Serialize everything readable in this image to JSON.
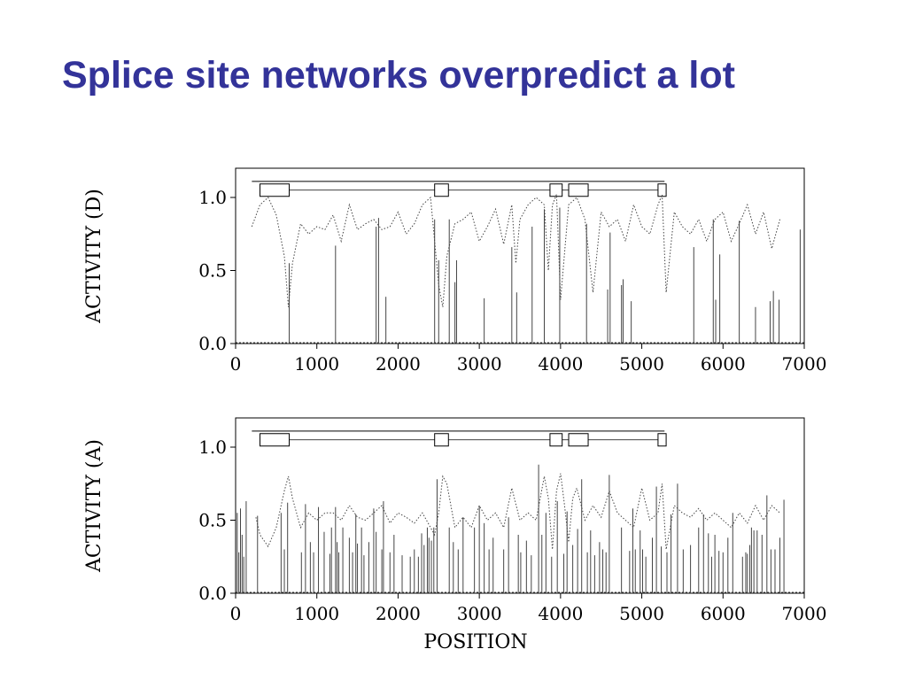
{
  "slide": {
    "title": "Splice site networks overpredict a lot"
  },
  "colors": {
    "title": "#333399",
    "ink": "#000000",
    "trace": "#444444"
  },
  "chart_data": [
    {
      "type": "line",
      "title": "",
      "xlabel": "",
      "ylabel": "ACTIVITY (D)",
      "xlim": [
        0,
        7000
      ],
      "ylim": [
        0,
        1.2
      ],
      "xticks": [
        "0",
        "1000",
        "2000",
        "3000",
        "4000",
        "5000",
        "6000",
        "7000"
      ],
      "xtick_values": [
        0,
        1000,
        2000,
        3000,
        4000,
        5000,
        6000,
        7000
      ],
      "yticks": [
        "0.0",
        "0.5",
        "1.0"
      ],
      "ytick_values": [
        0,
        0.5,
        1.0
      ],
      "grid": false,
      "gene_structure": {
        "start": 200,
        "end": 5280,
        "y_top": 1.11,
        "y_line": 1.05,
        "exons": [
          [
            300,
            660
          ],
          [
            2450,
            2620
          ],
          [
            3870,
            4020
          ],
          [
            4100,
            4340
          ],
          [
            5200,
            5300
          ]
        ]
      },
      "spikes": [
        {
          "x": 660,
          "y": 0.55
        },
        {
          "x": 1230,
          "y": 0.67
        },
        {
          "x": 1730,
          "y": 0.8
        },
        {
          "x": 1760,
          "y": 0.86
        },
        {
          "x": 1850,
          "y": 0.32
        },
        {
          "x": 2450,
          "y": 0.85
        },
        {
          "x": 2500,
          "y": 0.57
        },
        {
          "x": 2630,
          "y": 0.85
        },
        {
          "x": 2700,
          "y": 0.42
        },
        {
          "x": 2720,
          "y": 0.57
        },
        {
          "x": 3060,
          "y": 0.31
        },
        {
          "x": 3400,
          "y": 0.66
        },
        {
          "x": 3460,
          "y": 0.35
        },
        {
          "x": 3650,
          "y": 0.8
        },
        {
          "x": 3800,
          "y": 0.92
        },
        {
          "x": 3990,
          "y": 0.93
        },
        {
          "x": 4320,
          "y": 0.82
        },
        {
          "x": 4580,
          "y": 0.37
        },
        {
          "x": 4610,
          "y": 0.76
        },
        {
          "x": 4750,
          "y": 0.4
        },
        {
          "x": 4770,
          "y": 0.44
        },
        {
          "x": 4870,
          "y": 0.29
        },
        {
          "x": 5640,
          "y": 0.66
        },
        {
          "x": 5880,
          "y": 0.85
        },
        {
          "x": 5910,
          "y": 0.3
        },
        {
          "x": 5960,
          "y": 0.61
        },
        {
          "x": 6200,
          "y": 0.84
        },
        {
          "x": 6400,
          "y": 0.25
        },
        {
          "x": 6580,
          "y": 0.29
        },
        {
          "x": 6620,
          "y": 0.36
        },
        {
          "x": 6690,
          "y": 0.3
        },
        {
          "x": 6950,
          "y": 0.78
        }
      ],
      "trace_x": [
        200,
        300,
        400,
        500,
        600,
        650,
        700,
        800,
        900,
        1000,
        1100,
        1200,
        1300,
        1400,
        1500,
        1600,
        1700,
        1800,
        1900,
        2000,
        2100,
        2200,
        2300,
        2400,
        2450,
        2500,
        2550,
        2600,
        2700,
        2800,
        2900,
        3000,
        3100,
        3200,
        3300,
        3400,
        3450,
        3500,
        3600,
        3700,
        3800,
        3850,
        3900,
        3950,
        4000,
        4100,
        4200,
        4300,
        4400,
        4500,
        4600,
        4700,
        4800,
        4900,
        5000,
        5100,
        5200,
        5250,
        5300,
        5400,
        5500,
        5600,
        5700,
        5800,
        5900,
        6000,
        6100,
        6200,
        6300,
        6400,
        6500,
        6600,
        6700
      ],
      "trace_y": [
        0.8,
        0.95,
        1.0,
        0.88,
        0.6,
        0.25,
        0.55,
        0.82,
        0.75,
        0.8,
        0.78,
        0.88,
        0.7,
        0.95,
        0.78,
        0.82,
        0.85,
        0.78,
        0.8,
        0.9,
        0.75,
        0.82,
        0.95,
        1.0,
        0.7,
        0.4,
        0.25,
        0.6,
        0.82,
        0.85,
        0.9,
        0.7,
        0.8,
        0.92,
        0.68,
        0.95,
        0.55,
        0.85,
        0.95,
        1.0,
        0.95,
        0.5,
        0.95,
        1.02,
        0.3,
        0.95,
        1.0,
        0.85,
        0.35,
        0.9,
        0.8,
        0.85,
        0.7,
        0.95,
        0.8,
        0.75,
        0.95,
        1.02,
        0.35,
        0.9,
        0.8,
        0.75,
        0.85,
        0.7,
        0.85,
        0.9,
        0.7,
        0.82,
        0.95,
        0.75,
        0.9,
        0.65,
        0.85
      ]
    },
    {
      "type": "line",
      "title": "",
      "xlabel": "POSITION",
      "ylabel": "ACTIVITY (A)",
      "xlim": [
        0,
        7000
      ],
      "ylim": [
        0,
        1.2
      ],
      "xticks": [
        "0",
        "1000",
        "2000",
        "3000",
        "4000",
        "5000",
        "6000",
        "7000"
      ],
      "xtick_values": [
        0,
        1000,
        2000,
        3000,
        4000,
        5000,
        6000,
        7000
      ],
      "yticks": [
        "0.0",
        "0.5",
        "1.0"
      ],
      "ytick_values": [
        0,
        0.5,
        1.0
      ],
      "grid": false,
      "gene_structure": {
        "start": 200,
        "end": 5280,
        "y_top": 1.11,
        "y_line": 1.05,
        "exons": [
          [
            300,
            660
          ],
          [
            2450,
            2620
          ],
          [
            3870,
            4020
          ],
          [
            4100,
            4340
          ],
          [
            5200,
            5300
          ]
        ]
      },
      "spikes": [
        {
          "x": 20,
          "y": 0.55
        },
        {
          "x": 40,
          "y": 0.28
        },
        {
          "x": 60,
          "y": 0.58
        },
        {
          "x": 80,
          "y": 0.4
        },
        {
          "x": 100,
          "y": 0.25
        },
        {
          "x": 130,
          "y": 0.63
        },
        {
          "x": 270,
          "y": 0.53
        },
        {
          "x": 560,
          "y": 0.55
        },
        {
          "x": 600,
          "y": 0.3
        },
        {
          "x": 640,
          "y": 0.62
        },
        {
          "x": 810,
          "y": 0.28
        },
        {
          "x": 860,
          "y": 0.61
        },
        {
          "x": 920,
          "y": 0.35
        },
        {
          "x": 960,
          "y": 0.28
        },
        {
          "x": 1020,
          "y": 0.59
        },
        {
          "x": 1090,
          "y": 0.42
        },
        {
          "x": 1160,
          "y": 0.27
        },
        {
          "x": 1180,
          "y": 0.45
        },
        {
          "x": 1230,
          "y": 0.59
        },
        {
          "x": 1250,
          "y": 0.35
        },
        {
          "x": 1270,
          "y": 0.28
        },
        {
          "x": 1320,
          "y": 0.45
        },
        {
          "x": 1400,
          "y": 0.38
        },
        {
          "x": 1440,
          "y": 0.28
        },
        {
          "x": 1480,
          "y": 0.54
        },
        {
          "x": 1500,
          "y": 0.34
        },
        {
          "x": 1550,
          "y": 0.45
        },
        {
          "x": 1580,
          "y": 0.26
        },
        {
          "x": 1640,
          "y": 0.35
        },
        {
          "x": 1700,
          "y": 0.58
        },
        {
          "x": 1730,
          "y": 0.42
        },
        {
          "x": 1800,
          "y": 0.3
        },
        {
          "x": 1820,
          "y": 0.63
        },
        {
          "x": 1900,
          "y": 0.28
        },
        {
          "x": 1950,
          "y": 0.4
        },
        {
          "x": 2050,
          "y": 0.26
        },
        {
          "x": 2150,
          "y": 0.25
        },
        {
          "x": 2200,
          "y": 0.3
        },
        {
          "x": 2250,
          "y": 0.25
        },
        {
          "x": 2290,
          "y": 0.41
        },
        {
          "x": 2320,
          "y": 0.33
        },
        {
          "x": 2360,
          "y": 0.45
        },
        {
          "x": 2380,
          "y": 0.38
        },
        {
          "x": 2410,
          "y": 0.36
        },
        {
          "x": 2440,
          "y": 0.45
        },
        {
          "x": 2480,
          "y": 0.78
        },
        {
          "x": 2630,
          "y": 0.45
        },
        {
          "x": 2680,
          "y": 0.35
        },
        {
          "x": 2740,
          "y": 0.3
        },
        {
          "x": 2800,
          "y": 0.52
        },
        {
          "x": 2940,
          "y": 0.45
        },
        {
          "x": 3000,
          "y": 0.6
        },
        {
          "x": 3060,
          "y": 0.48
        },
        {
          "x": 3120,
          "y": 0.3
        },
        {
          "x": 3170,
          "y": 0.38
        },
        {
          "x": 3300,
          "y": 0.3
        },
        {
          "x": 3360,
          "y": 0.52
        },
        {
          "x": 3480,
          "y": 0.4
        },
        {
          "x": 3510,
          "y": 0.28
        },
        {
          "x": 3580,
          "y": 0.36
        },
        {
          "x": 3640,
          "y": 0.26
        },
        {
          "x": 3730,
          "y": 0.88
        },
        {
          "x": 3770,
          "y": 0.4
        },
        {
          "x": 3820,
          "y": 0.55
        },
        {
          "x": 3890,
          "y": 0.25
        },
        {
          "x": 3960,
          "y": 0.63
        },
        {
          "x": 4040,
          "y": 0.27
        },
        {
          "x": 4080,
          "y": 0.56
        },
        {
          "x": 4150,
          "y": 0.33
        },
        {
          "x": 4210,
          "y": 0.44
        },
        {
          "x": 4260,
          "y": 0.78
        },
        {
          "x": 4330,
          "y": 0.28
        },
        {
          "x": 4370,
          "y": 0.43
        },
        {
          "x": 4420,
          "y": 0.26
        },
        {
          "x": 4480,
          "y": 0.35
        },
        {
          "x": 4520,
          "y": 0.3
        },
        {
          "x": 4560,
          "y": 0.28
        },
        {
          "x": 4600,
          "y": 0.81
        },
        {
          "x": 4750,
          "y": 0.45
        },
        {
          "x": 4850,
          "y": 0.29
        },
        {
          "x": 4890,
          "y": 0.58
        },
        {
          "x": 4920,
          "y": 0.3
        },
        {
          "x": 4980,
          "y": 0.43
        },
        {
          "x": 5010,
          "y": 0.3
        },
        {
          "x": 5050,
          "y": 0.25
        },
        {
          "x": 5130,
          "y": 0.38
        },
        {
          "x": 5180,
          "y": 0.73
        },
        {
          "x": 5240,
          "y": 0.32
        },
        {
          "x": 5310,
          "y": 0.28
        },
        {
          "x": 5360,
          "y": 0.54
        },
        {
          "x": 5440,
          "y": 0.75
        },
        {
          "x": 5510,
          "y": 0.3
        },
        {
          "x": 5600,
          "y": 0.33
        },
        {
          "x": 5700,
          "y": 0.45
        },
        {
          "x": 5760,
          "y": 0.54
        },
        {
          "x": 5820,
          "y": 0.41
        },
        {
          "x": 5860,
          "y": 0.25
        },
        {
          "x": 5900,
          "y": 0.4
        },
        {
          "x": 5950,
          "y": 0.29
        },
        {
          "x": 6000,
          "y": 0.28
        },
        {
          "x": 6060,
          "y": 0.38
        },
        {
          "x": 6120,
          "y": 0.55
        },
        {
          "x": 6240,
          "y": 0.25
        },
        {
          "x": 6280,
          "y": 0.28
        },
        {
          "x": 6300,
          "y": 0.27
        },
        {
          "x": 6330,
          "y": 0.33
        },
        {
          "x": 6350,
          "y": 0.45
        },
        {
          "x": 6380,
          "y": 0.43
        },
        {
          "x": 6420,
          "y": 0.43
        },
        {
          "x": 6480,
          "y": 0.4
        },
        {
          "x": 6540,
          "y": 0.67
        },
        {
          "x": 6590,
          "y": 0.3
        },
        {
          "x": 6640,
          "y": 0.3
        },
        {
          "x": 6700,
          "y": 0.38
        },
        {
          "x": 6750,
          "y": 0.64
        }
      ],
      "trace_x": [
        250,
        300,
        400,
        500,
        600,
        650,
        700,
        800,
        900,
        1000,
        1100,
        1200,
        1300,
        1400,
        1500,
        1600,
        1700,
        1800,
        1900,
        2000,
        2100,
        2200,
        2300,
        2400,
        2450,
        2500,
        2550,
        2600,
        2700,
        2800,
        2900,
        3000,
        3100,
        3200,
        3300,
        3400,
        3500,
        3600,
        3700,
        3800,
        3850,
        3900,
        3950,
        4000,
        4050,
        4100,
        4150,
        4200,
        4300,
        4400,
        4500,
        4600,
        4700,
        4800,
        4900,
        5000,
        5100,
        5200,
        5250,
        5300,
        5400,
        5500,
        5600,
        5700,
        5800,
        5900,
        6000,
        6100,
        6200,
        6300,
        6400,
        6500,
        6600,
        6700
      ],
      "trace_y": [
        0.52,
        0.4,
        0.32,
        0.45,
        0.7,
        0.8,
        0.65,
        0.45,
        0.55,
        0.5,
        0.55,
        0.55,
        0.5,
        0.6,
        0.52,
        0.5,
        0.55,
        0.6,
        0.48,
        0.55,
        0.52,
        0.48,
        0.55,
        0.45,
        0.4,
        0.55,
        0.8,
        0.75,
        0.45,
        0.52,
        0.45,
        0.6,
        0.5,
        0.55,
        0.45,
        0.72,
        0.5,
        0.55,
        0.5,
        0.8,
        0.65,
        0.3,
        0.7,
        0.82,
        0.6,
        0.35,
        0.65,
        0.72,
        0.5,
        0.6,
        0.52,
        0.7,
        0.55,
        0.5,
        0.45,
        0.72,
        0.5,
        0.55,
        0.75,
        0.3,
        0.6,
        0.55,
        0.52,
        0.58,
        0.5,
        0.55,
        0.5,
        0.45,
        0.55,
        0.48,
        0.6,
        0.5,
        0.6,
        0.55
      ]
    }
  ]
}
